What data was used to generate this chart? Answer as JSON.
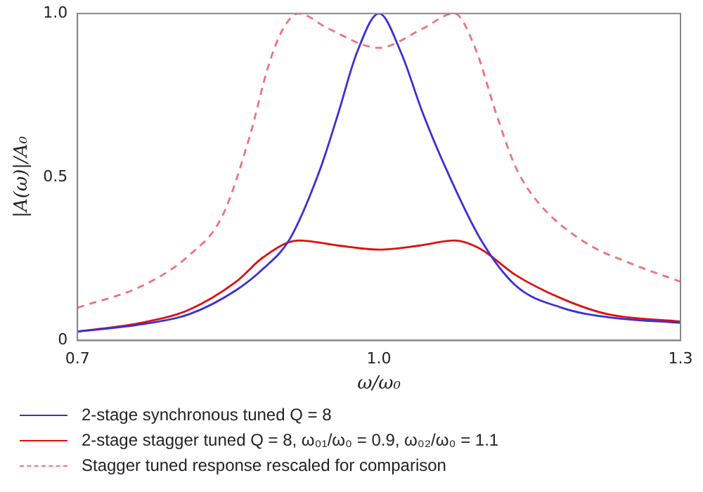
{
  "chart_data": {
    "type": "line",
    "xlabel": "ω/ω₀",
    "ylabel": "|A(ω)|/A₀",
    "xlim": [
      0.7,
      1.3
    ],
    "ylim": [
      0,
      1.0
    ],
    "xticks": [
      {
        "value": 0.7,
        "label": "0.7"
      },
      {
        "value": 1.0,
        "label": "1.0"
      },
      {
        "value": 1.3,
        "label": "1.3"
      }
    ],
    "yticks": [
      0,
      0.5,
      {
        "value": 1.0,
        "label": "1.0"
      }
    ],
    "grid": false,
    "legend": "bottom",
    "marker": "none",
    "series": [
      {
        "name": "2-stage synchronous tuned Q = 8",
        "color": "#3a2fd6",
        "line_style": "solid",
        "x": [
          0.7,
          0.765,
          0.811,
          0.858,
          0.885,
          0.911,
          0.941,
          0.959,
          0.978,
          1.0,
          1.022,
          1.043,
          1.066,
          1.101,
          1.136,
          1.182,
          1.228,
          1.3
        ],
        "values": [
          0.027,
          0.05,
          0.08,
          0.154,
          0.22,
          0.309,
          0.52,
          0.69,
          0.88,
          1.0,
          0.88,
          0.7,
          0.53,
          0.31,
          0.168,
          0.1,
          0.071,
          0.054
        ]
      },
      {
        "name": "2-stage stagger tuned Q = 8, ω₀₁/ω₀ = 0.9, ω₀₂/ω₀ = 1.1",
        "color": "#e01010",
        "line_style": "solid",
        "x": [
          0.7,
          0.765,
          0.811,
          0.858,
          0.885,
          0.92,
          0.96,
          1.0,
          1.04,
          1.075,
          1.101,
          1.136,
          1.182,
          1.228,
          1.3
        ],
        "values": [
          0.027,
          0.055,
          0.094,
          0.18,
          0.255,
          0.306,
          0.29,
          0.278,
          0.29,
          0.306,
          0.28,
          0.2,
          0.128,
          0.08,
          0.058
        ]
      },
      {
        "name": "Stagger tuned response rescaled for comparison",
        "color": "#f07080",
        "line_style": "dashed",
        "x": [
          0.7,
          0.765,
          0.811,
          0.844,
          0.871,
          0.89,
          0.904,
          0.92,
          0.95,
          1.0,
          1.043,
          1.075,
          1.095,
          1.117,
          1.136,
          1.159,
          1.205,
          1.251,
          1.3
        ],
        "values": [
          0.1,
          0.168,
          0.26,
          0.38,
          0.62,
          0.84,
          0.95,
          1.0,
          0.953,
          0.895,
          0.953,
          1.0,
          0.9,
          0.69,
          0.53,
          0.42,
          0.3,
          0.235,
          0.18
        ]
      }
    ]
  }
}
